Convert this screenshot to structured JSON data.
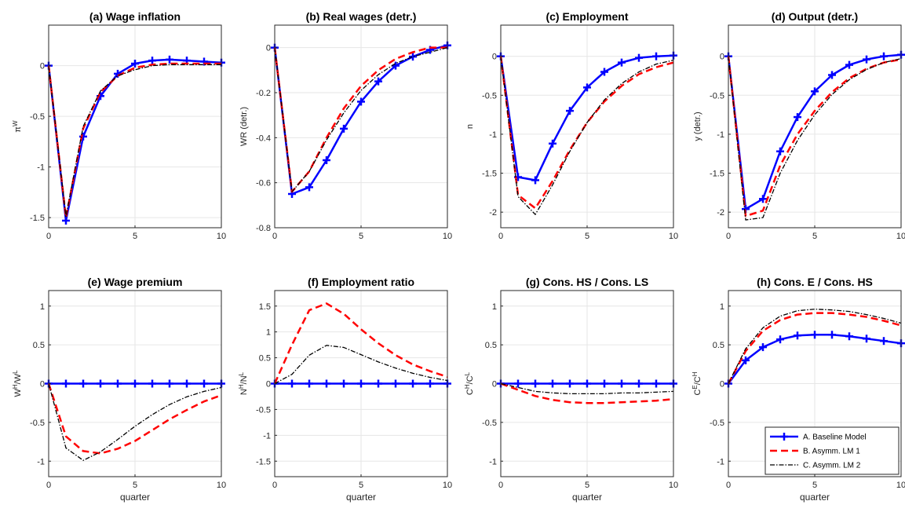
{
  "chart_data": [
    {
      "type": "line",
      "title": "(a) Wage inflation",
      "xlabel": "",
      "ylabel": {
        "base": "π",
        "sup": "W"
      },
      "xlim": [
        0,
        10
      ],
      "ylim": [
        -1.6,
        0.4
      ],
      "xticks": [
        0,
        5,
        10
      ],
      "yticks": [
        -1.5,
        -1,
        -0.5,
        0
      ],
      "ytick_labels": [
        "-1.5",
        "-1",
        "-0.5",
        "0"
      ],
      "x": [
        0,
        1,
        2,
        3,
        4,
        5,
        6,
        7,
        8,
        9,
        10
      ],
      "series": [
        {
          "name": "A. Baseline Model",
          "values": [
            0,
            -1.53,
            -0.7,
            -0.3,
            -0.08,
            0.02,
            0.05,
            0.06,
            0.05,
            0.04,
            0.03
          ]
        },
        {
          "name": "B. Asymm. LM 1",
          "values": [
            0,
            -1.5,
            -0.62,
            -0.26,
            -0.1,
            -0.02,
            0.01,
            0.02,
            0.02,
            0.02,
            0.02
          ]
        },
        {
          "name": "C. Asymm. LM 2",
          "values": [
            0,
            -1.49,
            -0.6,
            -0.25,
            -0.1,
            -0.04,
            0.0,
            0.01,
            0.01,
            0.01,
            0.01
          ]
        }
      ]
    },
    {
      "type": "line",
      "title": "(b) Real wages (detr.)",
      "xlabel": "",
      "ylabel": {
        "base": "WR  (detr.)",
        "sup": ""
      },
      "xlim": [
        0,
        10
      ],
      "ylim": [
        -0.8,
        0.1
      ],
      "xticks": [
        0,
        5,
        10
      ],
      "yticks": [
        -0.8,
        -0.6,
        -0.4,
        -0.2,
        0
      ],
      "ytick_labels": [
        "-0.8",
        "-0.6",
        "-0.4",
        "-0.2",
        "0"
      ],
      "x": [
        0,
        1,
        2,
        3,
        4,
        5,
        6,
        7,
        8,
        9,
        10
      ],
      "series": [
        {
          "name": "A. Baseline Model",
          "values": [
            0,
            -0.65,
            -0.62,
            -0.5,
            -0.36,
            -0.24,
            -0.15,
            -0.08,
            -0.04,
            -0.01,
            0.01
          ]
        },
        {
          "name": "B. Asymm. LM 1",
          "values": [
            0,
            -0.64,
            -0.55,
            -0.4,
            -0.27,
            -0.17,
            -0.1,
            -0.05,
            -0.02,
            0.0,
            0.0
          ]
        },
        {
          "name": "C. Asymm. LM 2",
          "values": [
            0,
            -0.64,
            -0.55,
            -0.41,
            -0.29,
            -0.19,
            -0.12,
            -0.07,
            -0.04,
            -0.02,
            0.0
          ]
        }
      ]
    },
    {
      "type": "line",
      "title": "(c) Employment",
      "xlabel": "",
      "ylabel": {
        "base": "n",
        "sup": ""
      },
      "xlim": [
        0,
        10
      ],
      "ylim": [
        -2.2,
        0.4
      ],
      "xticks": [
        0,
        5,
        10
      ],
      "yticks": [
        -2,
        -1.5,
        -1,
        -0.5,
        0
      ],
      "ytick_labels": [
        "-2",
        "-1.5",
        "-1",
        "-0.5",
        "0"
      ],
      "x": [
        0,
        1,
        2,
        3,
        4,
        5,
        6,
        7,
        8,
        9,
        10
      ],
      "series": [
        {
          "name": "A. Baseline Model",
          "values": [
            0,
            -1.55,
            -1.59,
            -1.12,
            -0.7,
            -0.4,
            -0.2,
            -0.08,
            -0.02,
            0.0,
            0.01
          ]
        },
        {
          "name": "B. Asymm. LM 1",
          "values": [
            0,
            -1.78,
            -1.95,
            -1.6,
            -1.2,
            -0.85,
            -0.58,
            -0.38,
            -0.23,
            -0.14,
            -0.08
          ]
        },
        {
          "name": "C. Asymm. LM 2",
          "values": [
            0,
            -1.8,
            -2.03,
            -1.65,
            -1.22,
            -0.85,
            -0.56,
            -0.35,
            -0.2,
            -0.1,
            -0.05
          ]
        }
      ]
    },
    {
      "type": "line",
      "title": "(d) Output (detr.)",
      "xlabel": "",
      "ylabel": {
        "base": "y (detr.)",
        "sup": ""
      },
      "xlim": [
        0,
        10
      ],
      "ylim": [
        -2.2,
        0.4
      ],
      "xticks": [
        0,
        5,
        10
      ],
      "yticks": [
        -2,
        -1.5,
        -1,
        -0.5,
        0
      ],
      "ytick_labels": [
        "-2",
        "-1.5",
        "-1",
        "-0.5",
        "0"
      ],
      "x": [
        0,
        1,
        2,
        3,
        4,
        5,
        6,
        7,
        8,
        9,
        10
      ],
      "series": [
        {
          "name": "A. Baseline Model",
          "values": [
            0,
            -1.96,
            -1.83,
            -1.22,
            -0.78,
            -0.45,
            -0.24,
            -0.11,
            -0.04,
            0.0,
            0.02
          ]
        },
        {
          "name": "B. Asymm. LM 1",
          "values": [
            0,
            -2.05,
            -1.98,
            -1.4,
            -1.0,
            -0.7,
            -0.46,
            -0.28,
            -0.16,
            -0.08,
            -0.04
          ]
        },
        {
          "name": "C. Asymm. LM 2",
          "values": [
            0,
            -2.1,
            -2.07,
            -1.5,
            -1.08,
            -0.75,
            -0.49,
            -0.3,
            -0.17,
            -0.08,
            -0.03
          ]
        }
      ]
    },
    {
      "type": "line",
      "title": "(e) Wage premium",
      "xlabel": "quarter",
      "ylabel": {
        "base": "W",
        "sup": "H",
        "base2": "/W",
        "sup2": "L"
      },
      "xlim": [
        0,
        10
      ],
      "ylim": [
        -1.2,
        1.2
      ],
      "xticks": [
        0,
        5,
        10
      ],
      "yticks": [
        -1,
        -0.5,
        0,
        0.5,
        1
      ],
      "ytick_labels": [
        "-1",
        "-0.5",
        "0",
        "0.5",
        "1"
      ],
      "x": [
        0,
        1,
        2,
        3,
        4,
        5,
        6,
        7,
        8,
        9,
        10
      ],
      "series": [
        {
          "name": "A. Baseline Model",
          "values": [
            0,
            0,
            0,
            0,
            0,
            0,
            0,
            0,
            0,
            0,
            0
          ]
        },
        {
          "name": "B. Asymm. LM 1",
          "values": [
            0,
            -0.68,
            -0.87,
            -0.9,
            -0.84,
            -0.74,
            -0.6,
            -0.46,
            -0.34,
            -0.23,
            -0.15
          ]
        },
        {
          "name": "C. Asymm. LM 2",
          "values": [
            0,
            -0.83,
            -0.99,
            -0.88,
            -0.72,
            -0.55,
            -0.4,
            -0.27,
            -0.17,
            -0.1,
            -0.05
          ]
        }
      ]
    },
    {
      "type": "line",
      "title": "(f) Employment ratio",
      "xlabel": "quarter",
      "ylabel": {
        "base": "N",
        "sup": "H",
        "base2": "/N",
        "sup2": "L"
      },
      "xlim": [
        0,
        10
      ],
      "ylim": [
        -1.8,
        1.8
      ],
      "xticks": [
        0,
        5,
        10
      ],
      "yticks": [
        -1.5,
        -1,
        -0.5,
        0,
        0.5,
        1,
        1.5
      ],
      "ytick_labels": [
        "-1.5",
        "-1",
        "-0.5",
        "0",
        "0.5",
        "1",
        "1.5"
      ],
      "x": [
        0,
        1,
        2,
        3,
        4,
        5,
        6,
        7,
        8,
        9,
        10
      ],
      "series": [
        {
          "name": "A. Baseline Model",
          "values": [
            0,
            0,
            0,
            0,
            0,
            0,
            0,
            0,
            0,
            0,
            0
          ]
        },
        {
          "name": "B. Asymm. LM 1",
          "values": [
            0,
            0.75,
            1.42,
            1.55,
            1.35,
            1.05,
            0.78,
            0.55,
            0.37,
            0.24,
            0.13
          ]
        },
        {
          "name": "C. Asymm. LM 2",
          "values": [
            0,
            0.18,
            0.55,
            0.74,
            0.7,
            0.56,
            0.42,
            0.3,
            0.2,
            0.12,
            0.06
          ]
        }
      ]
    },
    {
      "type": "line",
      "title": "(g) Cons. HS / Cons. LS",
      "xlabel": "quarter",
      "ylabel": {
        "base": "C",
        "sup": "H",
        "base2": "/C",
        "sup2": "L"
      },
      "xlim": [
        0,
        10
      ],
      "ylim": [
        -1.2,
        1.2
      ],
      "xticks": [
        0,
        5,
        10
      ],
      "yticks": [
        -1,
        -0.5,
        0,
        0.5,
        1
      ],
      "ytick_labels": [
        "-1",
        "-0.5",
        "0",
        "0.5",
        "1"
      ],
      "x": [
        0,
        1,
        2,
        3,
        4,
        5,
        6,
        7,
        8,
        9,
        10
      ],
      "series": [
        {
          "name": "A. Baseline Model",
          "values": [
            0,
            0,
            0,
            0,
            0,
            0,
            0,
            0,
            0,
            0,
            0
          ]
        },
        {
          "name": "B. Asymm. LM 1",
          "values": [
            0,
            -0.08,
            -0.16,
            -0.21,
            -0.24,
            -0.25,
            -0.25,
            -0.24,
            -0.23,
            -0.22,
            -0.2
          ]
        },
        {
          "name": "C. Asymm. LM 2",
          "values": [
            0,
            -0.05,
            -0.1,
            -0.12,
            -0.13,
            -0.13,
            -0.13,
            -0.12,
            -0.12,
            -0.11,
            -0.1
          ]
        }
      ]
    },
    {
      "type": "line",
      "title": "(h) Cons. E / Cons. HS",
      "xlabel": "quarter",
      "ylabel": {
        "base": "C",
        "sup": "E",
        "base2": "/C",
        "sup2": "H"
      },
      "xlim": [
        0,
        10
      ],
      "ylim": [
        -1.2,
        1.2
      ],
      "xticks": [
        0,
        5,
        10
      ],
      "yticks": [
        -1,
        -0.5,
        0,
        0.5,
        1
      ],
      "ytick_labels": [
        "-1",
        "-0.5",
        "0",
        "0.5",
        "1"
      ],
      "legend": "bottom-right",
      "x": [
        0,
        1,
        2,
        3,
        4,
        5,
        6,
        7,
        8,
        9,
        10
      ],
      "series": [
        {
          "name": "A. Baseline Model",
          "values": [
            0,
            0.3,
            0.47,
            0.57,
            0.62,
            0.63,
            0.63,
            0.61,
            0.58,
            0.55,
            0.52
          ]
        },
        {
          "name": "B. Asymm. LM 1",
          "values": [
            0,
            0.42,
            0.68,
            0.82,
            0.89,
            0.91,
            0.91,
            0.89,
            0.86,
            0.81,
            0.75
          ]
        },
        {
          "name": "C. Asymm. LM 2",
          "values": [
            0,
            0.45,
            0.72,
            0.87,
            0.94,
            0.96,
            0.95,
            0.93,
            0.89,
            0.84,
            0.78
          ]
        }
      ]
    }
  ],
  "legend": {
    "entries": [
      "A. Baseline Model",
      "B. Asymm. LM 1",
      "C. Asymm. LM 2"
    ],
    "placement": "bottom-right of panel (h)"
  },
  "series_styles": [
    {
      "color": "#0000ff",
      "dash": "",
      "marker": "plus",
      "width": 2.5
    },
    {
      "color": "#ff0000",
      "dash": "9 5",
      "marker": "none",
      "width": 2.5
    },
    {
      "color": "#000000",
      "dash": "6 2 1.5 2",
      "marker": "none",
      "width": 1.3
    }
  ],
  "colors": {
    "grid": "#e6e6e6",
    "axis": "#262626"
  }
}
